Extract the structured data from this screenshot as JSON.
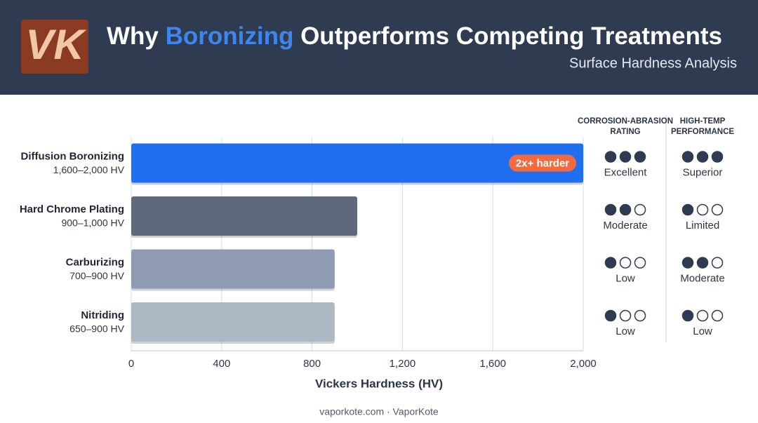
{
  "header": {
    "logo": "VK",
    "title_parts": [
      "Why ",
      "Boronizing",
      " Outperforms Competing Treatments"
    ],
    "subtitle": "Surface Hardness Analysis"
  },
  "chart_data": {
    "type": "bar",
    "orientation": "horizontal",
    "categories": [
      "Diffusion Boronizing",
      "Hard Chrome Plating",
      "Carburizing",
      "Nitriding"
    ],
    "ranges": [
      "1,600–2,000 HV",
      "900–1,000 HV",
      "700–900 HV",
      "650–900 HV"
    ],
    "values": [
      2000,
      1000,
      900,
      900
    ],
    "colors": [
      "#1f6ff0",
      "#5e6a7c",
      "#8f9bb2",
      "#adb9c2"
    ],
    "annotation": "2x+ harder",
    "xlim": [
      0,
      2000
    ],
    "xticks": [
      0,
      400,
      800,
      {
        "value": 1200,
        "label": "1,200"
      },
      {
        "value": 1600,
        "label": "1,600"
      },
      {
        "value": 2000,
        "label": "2,000"
      }
    ],
    "x_label": "Vickers Hardness (HV)",
    "grid": true
  },
  "table": {
    "columns": [
      {
        "header": [
          "CORROSION-ABRASION",
          "RATING"
        ],
        "ratings": [
          3,
          2,
          1,
          1
        ],
        "labels": [
          "Excellent",
          "Moderate",
          "Low",
          "Low"
        ]
      },
      {
        "header": [
          "HIGH-TEMP",
          "PERFORMANCE"
        ],
        "ratings": [
          3,
          1,
          2,
          1
        ],
        "labels": [
          "Superior",
          "Limited",
          "Moderate",
          "Low"
        ]
      }
    ]
  },
  "footer": "vaporkote.com · VaporKote"
}
